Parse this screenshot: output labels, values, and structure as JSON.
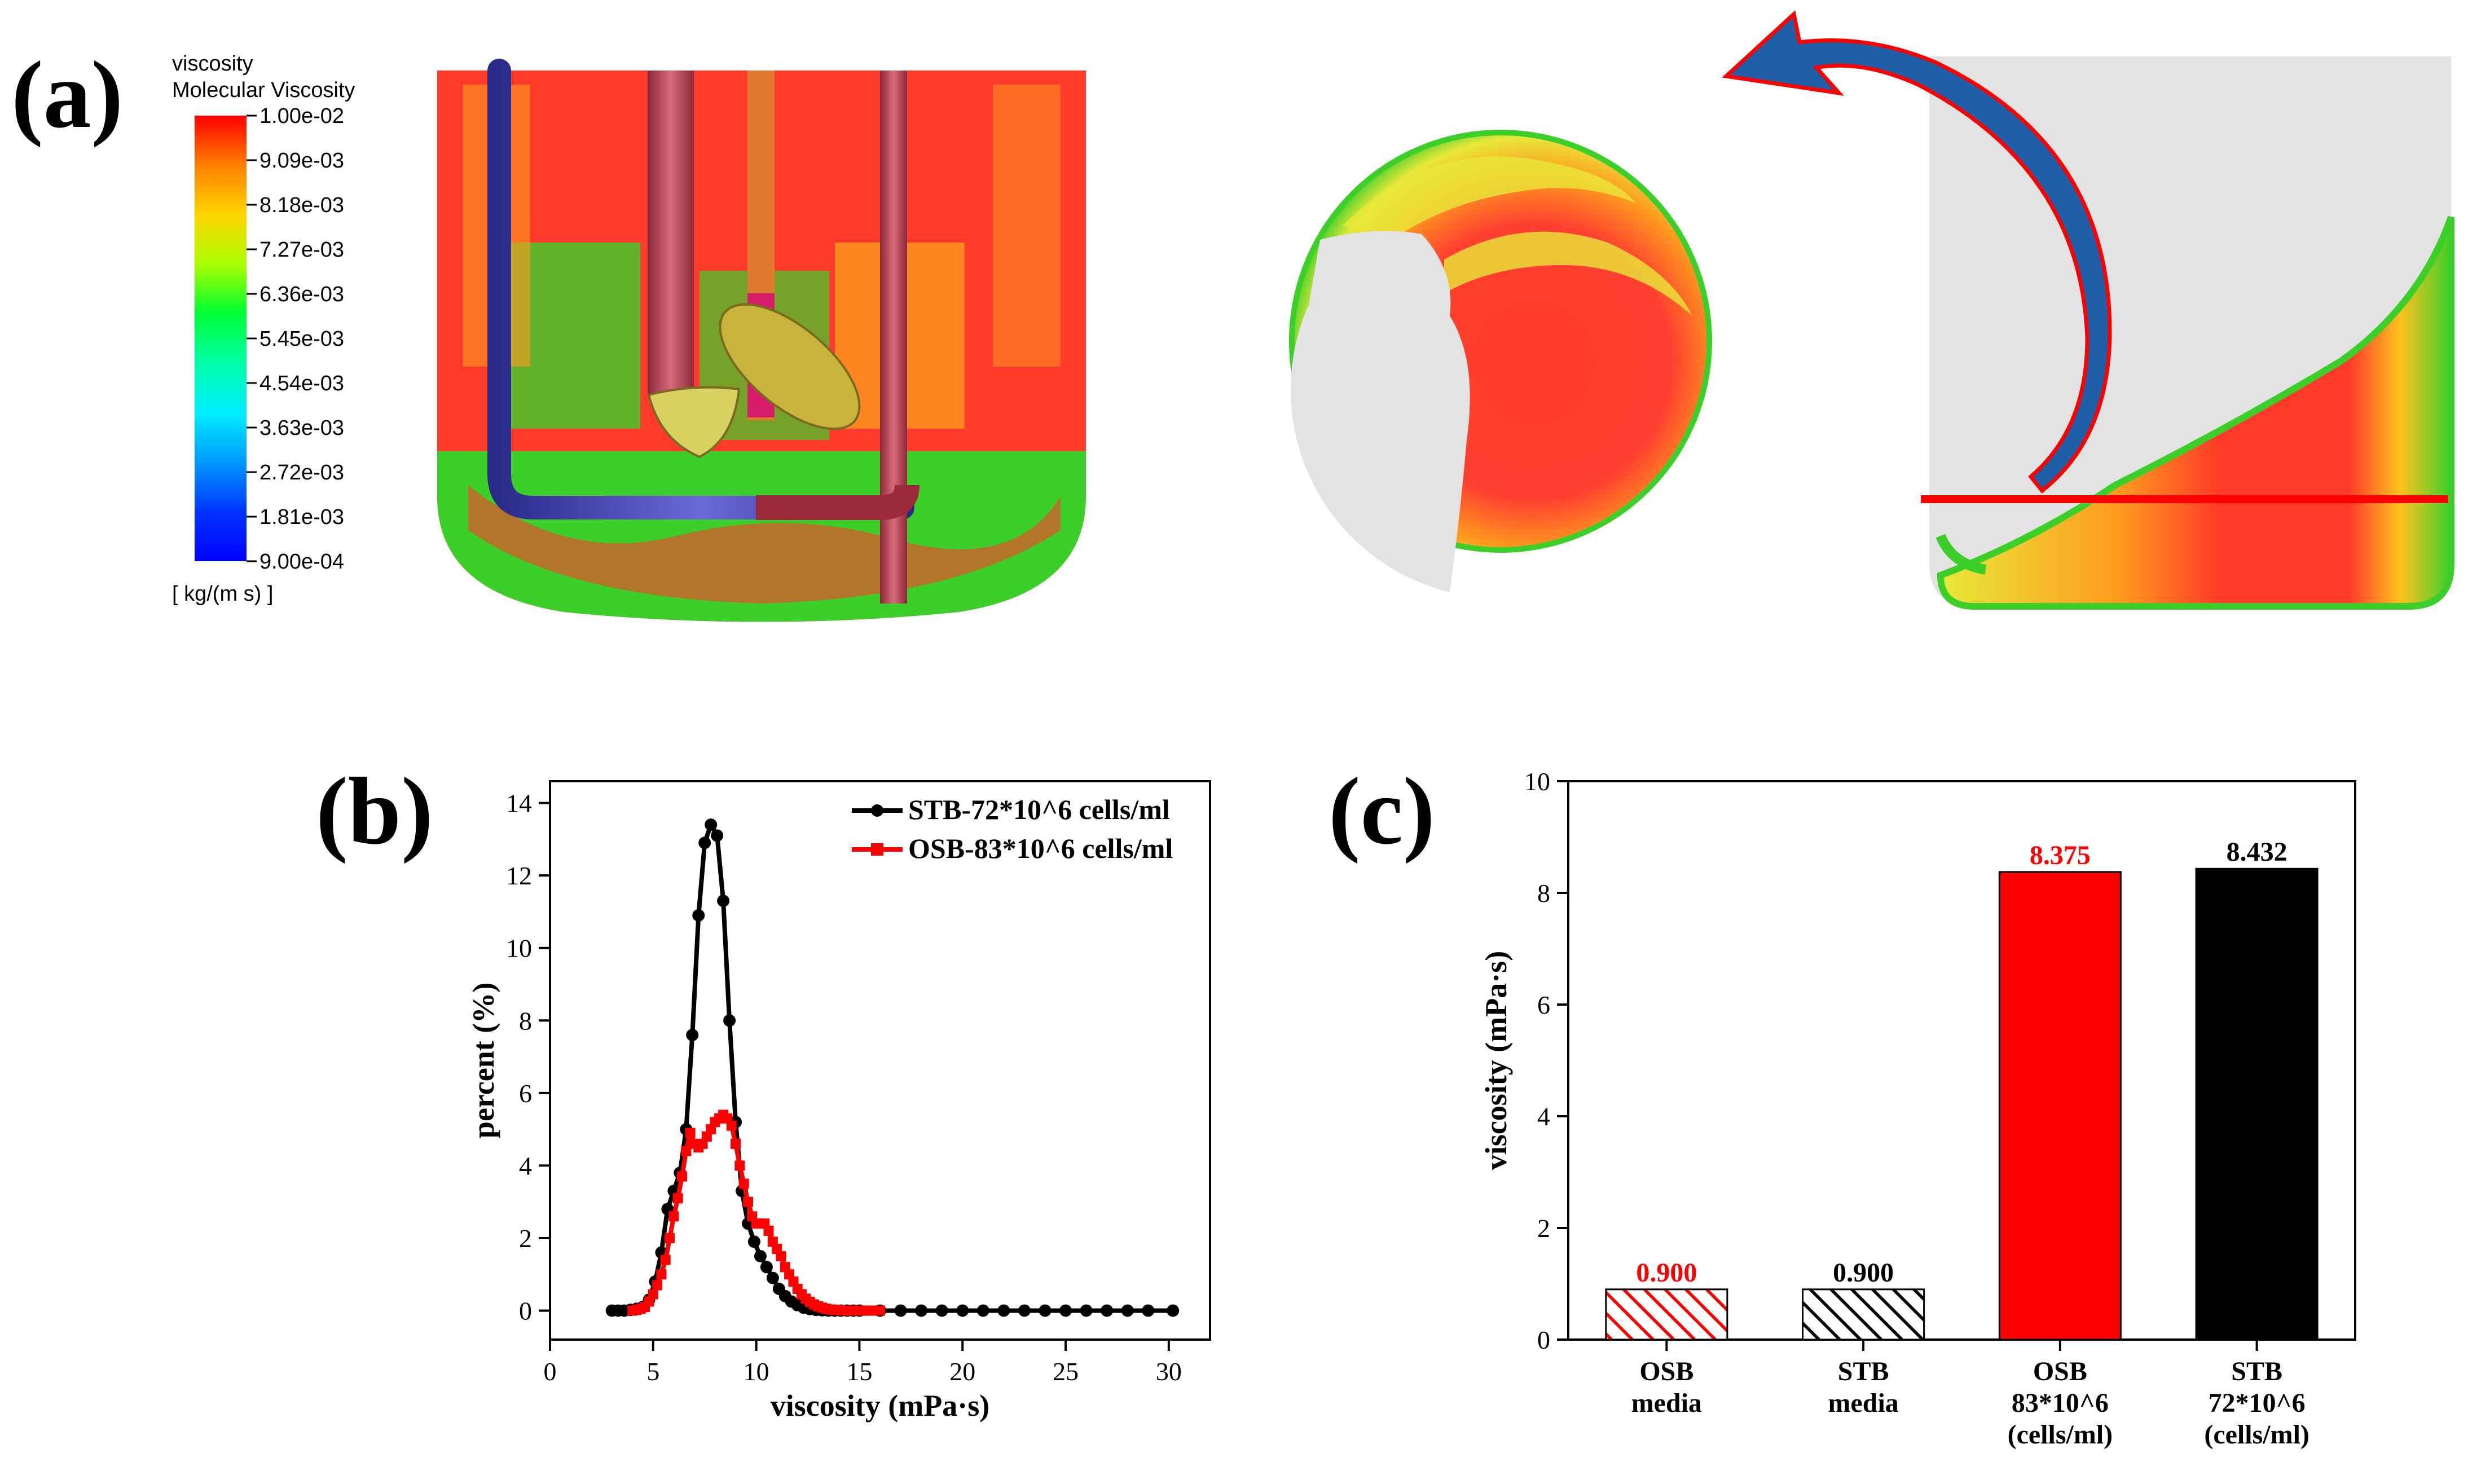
{
  "panel_labels": {
    "a": "(a)",
    "b": "(b)",
    "c": "(c)"
  },
  "colormap": {
    "title1": "viscosity",
    "title2": "Molecular Viscosity",
    "ticks": [
      "1.00e-02",
      "9.09e-03",
      "8.18e-03",
      "7.27e-03",
      "6.36e-03",
      "5.45e-03",
      "4.54e-03",
      "3.63e-03",
      "2.72e-03",
      "1.81e-03",
      "9.00e-04"
    ],
    "unit": "[ kg/(m s) ]",
    "min": 0.0009,
    "max": 0.01,
    "stops": [
      "#ff0000",
      "#ff7f00",
      "#ffd500",
      "#aaff00",
      "#00ff33",
      "#00ffaa",
      "#00eeff",
      "#0099ff",
      "#0033ff",
      "#0000ff"
    ]
  },
  "colors": {
    "red": "#ff0000",
    "black": "#000000",
    "sim_red": "#ff3a2a",
    "sim_orange": "#ff9a1e",
    "sim_yellow": "#e8e83a",
    "sim_green": "#3ccf2a",
    "grey": "#e3e3e3",
    "arrow_blue": "#1f5fa8"
  },
  "chart_data": [
    {
      "id": "b",
      "type": "line",
      "title": "",
      "xlabel": "viscosity (mPa·s)",
      "ylabel": "percent (%)",
      "xlim": [
        0,
        32
      ],
      "ylim": [
        -0.8,
        14.6
      ],
      "xticks": [
        0,
        5,
        10,
        15,
        20,
        25,
        30
      ],
      "yticks": [
        0,
        2,
        4,
        6,
        8,
        10,
        12,
        14
      ],
      "legend_position": "top-right",
      "series": [
        {
          "name": "STB-72*10^6 cells/ml",
          "color": "#000000",
          "marker": "circle",
          "x": [
            3.0,
            3.3,
            3.6,
            3.9,
            4.2,
            4.5,
            4.8,
            5.1,
            5.4,
            5.7,
            6.0,
            6.3,
            6.6,
            6.9,
            7.2,
            7.5,
            7.8,
            8.1,
            8.4,
            8.7,
            9.0,
            9.3,
            9.6,
            9.9,
            10.2,
            10.5,
            10.8,
            11.1,
            11.4,
            11.7,
            12.0,
            12.3,
            12.6,
            12.9,
            13.2,
            13.5,
            13.8,
            14.1,
            14.4,
            14.7,
            15.0,
            16.0,
            17.0,
            18.0,
            19.0,
            20.0,
            21.0,
            22.0,
            23.0,
            24.0,
            25.0,
            26.0,
            27.0,
            28.0,
            29.0,
            30.2
          ],
          "y": [
            0.0,
            0.0,
            0.0,
            0.02,
            0.05,
            0.1,
            0.3,
            0.8,
            1.6,
            2.8,
            3.3,
            3.8,
            5.0,
            7.6,
            10.9,
            12.9,
            13.4,
            13.1,
            11.3,
            8.0,
            5.2,
            3.3,
            2.4,
            1.9,
            1.5,
            1.2,
            0.9,
            0.6,
            0.4,
            0.25,
            0.15,
            0.08,
            0.04,
            0.02,
            0.01,
            0.0,
            0.0,
            0.0,
            0.0,
            0.0,
            0.0,
            0.0,
            0.0,
            0.0,
            0.0,
            0.0,
            0.0,
            0.0,
            0.0,
            0.0,
            0.0,
            0.0,
            0.0,
            0.0,
            0.0,
            0.0
          ]
        },
        {
          "name": "OSB-83*10^6 cells/ml",
          "color": "#ff0000",
          "marker": "square",
          "x": [
            4.0,
            4.2,
            4.4,
            4.6,
            4.8,
            5.0,
            5.2,
            5.4,
            5.6,
            5.8,
            6.0,
            6.2,
            6.4,
            6.6,
            6.8,
            7.0,
            7.2,
            7.4,
            7.6,
            7.8,
            8.0,
            8.2,
            8.4,
            8.6,
            8.8,
            9.0,
            9.2,
            9.4,
            9.6,
            9.8,
            10.0,
            10.2,
            10.4,
            10.6,
            10.8,
            11.0,
            11.2,
            11.4,
            11.6,
            11.8,
            12.0,
            12.2,
            12.4,
            12.6,
            12.8,
            13.0,
            13.2,
            13.4,
            13.6,
            13.8,
            14.0,
            14.2,
            14.4,
            14.6,
            14.8,
            15.0,
            15.2,
            15.4,
            15.6,
            15.8,
            16.0
          ],
          "y": [
            0.0,
            0.02,
            0.05,
            0.1,
            0.25,
            0.45,
            0.7,
            1.0,
            1.4,
            2.0,
            2.6,
            3.1,
            3.7,
            4.4,
            4.9,
            4.6,
            4.5,
            4.6,
            4.8,
            5.0,
            5.2,
            5.3,
            5.4,
            5.3,
            5.1,
            4.6,
            4.0,
            3.5,
            3.0,
            2.6,
            2.4,
            2.4,
            2.4,
            2.2,
            1.9,
            1.7,
            1.5,
            1.2,
            1.0,
            0.8,
            0.6,
            0.45,
            0.33,
            0.24,
            0.17,
            0.12,
            0.08,
            0.05,
            0.03,
            0.02,
            0.01,
            0.0,
            0.0,
            0.0,
            0.0,
            0.0,
            0.0,
            0.0,
            0.0,
            0.0,
            0.0
          ]
        }
      ]
    },
    {
      "id": "c",
      "type": "bar",
      "title": "",
      "xlabel": "",
      "ylabel": "viscosity (mPa·s)",
      "ylim": [
        0,
        10
      ],
      "yticks": [
        0,
        2,
        4,
        6,
        8,
        10
      ],
      "categories": [
        [
          "OSB",
          "media"
        ],
        [
          "STB",
          "media"
        ],
        [
          "OSB",
          "83*10^6",
          "(cells/ml)"
        ],
        [
          "STB",
          "72*10^6",
          "(cells/ml)"
        ]
      ],
      "values": [
        0.9,
        0.9,
        8.375,
        8.432
      ],
      "value_labels": [
        "0.900",
        "0.900",
        "8.375",
        "8.432"
      ],
      "bar_colors": [
        "#ff0000",
        "#000000",
        "#ff0000",
        "#000000"
      ],
      "hatched": [
        true,
        true,
        false,
        false
      ]
    }
  ]
}
